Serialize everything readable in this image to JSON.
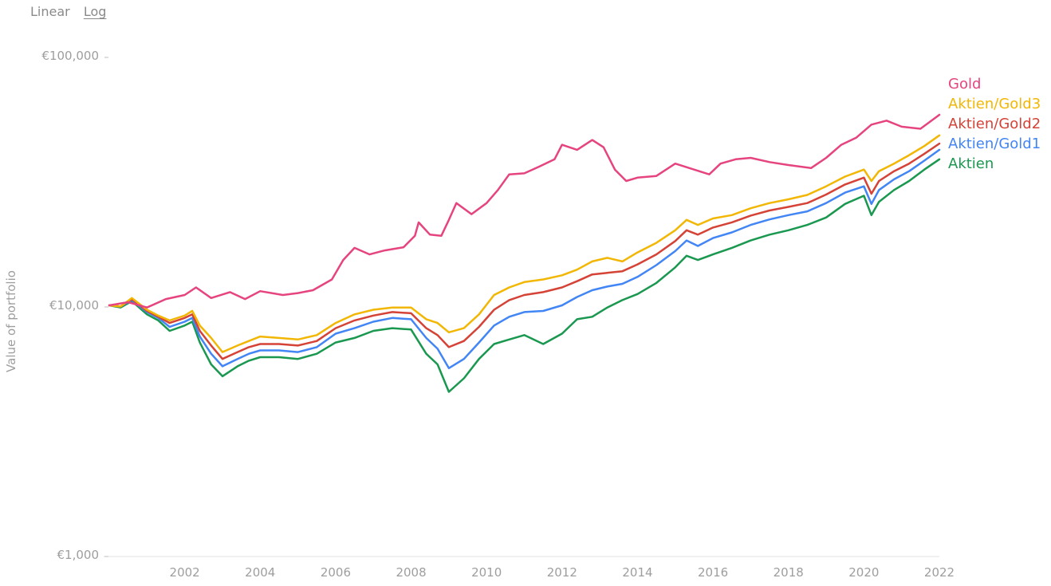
{
  "toggle": {
    "linear": "Linear",
    "log": "Log",
    "selected": "Log"
  },
  "chart_data": {
    "type": "line",
    "ylabel": "Value of portfolio",
    "xlabel": "",
    "yscale": "log",
    "ylim": [
      1000,
      100000
    ],
    "xlim": [
      2000.0,
      2022.0
    ],
    "yticks": [
      {
        "value": 1000,
        "label": "€1,000"
      },
      {
        "value": 10000,
        "label": "€10,000"
      },
      {
        "value": 100000,
        "label": "€100,000"
      }
    ],
    "xticks": [
      "2002",
      "2004",
      "2006",
      "2008",
      "2010",
      "2012",
      "2014",
      "2016",
      "2018",
      "2020",
      "2022"
    ],
    "legend_position": "right",
    "grid": false,
    "series": [
      {
        "name": "Gold",
        "color": "#e6447f",
        "points": [
          [
            2000.0,
            10000
          ],
          [
            2000.5,
            10300
          ],
          [
            2001.0,
            9800
          ],
          [
            2001.5,
            10600
          ],
          [
            2002.0,
            11000
          ],
          [
            2002.3,
            11800
          ],
          [
            2002.7,
            10700
          ],
          [
            2003.2,
            11300
          ],
          [
            2003.6,
            10600
          ],
          [
            2004.0,
            11400
          ],
          [
            2004.6,
            11000
          ],
          [
            2005.0,
            11200
          ],
          [
            2005.4,
            11500
          ],
          [
            2005.9,
            12700
          ],
          [
            2006.2,
            15200
          ],
          [
            2006.5,
            17000
          ],
          [
            2006.9,
            16000
          ],
          [
            2007.3,
            16600
          ],
          [
            2007.8,
            17100
          ],
          [
            2008.1,
            19000
          ],
          [
            2008.2,
            21500
          ],
          [
            2008.5,
            19200
          ],
          [
            2008.8,
            19000
          ],
          [
            2009.0,
            22000
          ],
          [
            2009.2,
            25700
          ],
          [
            2009.6,
            23200
          ],
          [
            2010.0,
            25700
          ],
          [
            2010.3,
            29000
          ],
          [
            2010.6,
            33500
          ],
          [
            2011.0,
            33800
          ],
          [
            2011.4,
            36000
          ],
          [
            2011.8,
            38500
          ],
          [
            2012.0,
            44000
          ],
          [
            2012.4,
            42000
          ],
          [
            2012.8,
            46000
          ],
          [
            2013.1,
            43000
          ],
          [
            2013.4,
            35000
          ],
          [
            2013.7,
            31500
          ],
          [
            2014.0,
            32500
          ],
          [
            2014.5,
            33000
          ],
          [
            2015.0,
            37000
          ],
          [
            2015.5,
            35000
          ],
          [
            2015.9,
            33500
          ],
          [
            2016.2,
            37000
          ],
          [
            2016.6,
            38500
          ],
          [
            2017.0,
            39000
          ],
          [
            2017.5,
            37500
          ],
          [
            2018.0,
            36500
          ],
          [
            2018.6,
            35500
          ],
          [
            2019.0,
            39000
          ],
          [
            2019.4,
            44000
          ],
          [
            2019.8,
            47000
          ],
          [
            2020.2,
            53000
          ],
          [
            2020.6,
            55000
          ],
          [
            2021.0,
            52000
          ],
          [
            2021.5,
            51000
          ],
          [
            2022.0,
            58000
          ]
        ]
      },
      {
        "name": "Aktien/Gold3",
        "color": "#f2b705",
        "points": [
          [
            2000.0,
            10000
          ],
          [
            2000.3,
            9900
          ],
          [
            2000.6,
            10700
          ],
          [
            2001.0,
            9600
          ],
          [
            2001.3,
            9100
          ],
          [
            2001.6,
            8700
          ],
          [
            2002.0,
            9100
          ],
          [
            2002.2,
            9500
          ],
          [
            2002.4,
            8300
          ],
          [
            2002.7,
            7400
          ],
          [
            2003.0,
            6500
          ],
          [
            2003.4,
            6900
          ],
          [
            2003.7,
            7200
          ],
          [
            2004.0,
            7500
          ],
          [
            2004.5,
            7400
          ],
          [
            2005.0,
            7300
          ],
          [
            2005.5,
            7600
          ],
          [
            2006.0,
            8500
          ],
          [
            2006.5,
            9200
          ],
          [
            2007.0,
            9600
          ],
          [
            2007.5,
            9800
          ],
          [
            2008.0,
            9800
          ],
          [
            2008.4,
            8800
          ],
          [
            2008.7,
            8500
          ],
          [
            2009.0,
            7800
          ],
          [
            2009.4,
            8100
          ],
          [
            2009.8,
            9200
          ],
          [
            2010.2,
            11000
          ],
          [
            2010.6,
            11800
          ],
          [
            2011.0,
            12400
          ],
          [
            2011.5,
            12700
          ],
          [
            2012.0,
            13200
          ],
          [
            2012.4,
            13900
          ],
          [
            2012.8,
            15000
          ],
          [
            2013.2,
            15500
          ],
          [
            2013.6,
            15000
          ],
          [
            2014.0,
            16300
          ],
          [
            2014.5,
            17800
          ],
          [
            2015.0,
            20000
          ],
          [
            2015.3,
            22000
          ],
          [
            2015.6,
            21000
          ],
          [
            2016.0,
            22300
          ],
          [
            2016.5,
            23000
          ],
          [
            2017.0,
            24500
          ],
          [
            2017.5,
            25700
          ],
          [
            2018.0,
            26600
          ],
          [
            2018.5,
            27700
          ],
          [
            2019.0,
            30000
          ],
          [
            2019.5,
            32800
          ],
          [
            2020.0,
            35000
          ],
          [
            2020.2,
            31500
          ],
          [
            2020.4,
            34500
          ],
          [
            2020.8,
            37000
          ],
          [
            2021.2,
            40000
          ],
          [
            2021.6,
            43500
          ],
          [
            2022.0,
            48000
          ]
        ]
      },
      {
        "name": "Aktien/Gold2",
        "color": "#d54236",
        "points": [
          [
            2000.0,
            10000
          ],
          [
            2000.3,
            9900
          ],
          [
            2000.6,
            10600
          ],
          [
            2001.0,
            9500
          ],
          [
            2001.3,
            9000
          ],
          [
            2001.6,
            8500
          ],
          [
            2002.0,
            8900
          ],
          [
            2002.2,
            9200
          ],
          [
            2002.4,
            7900
          ],
          [
            2002.7,
            6900
          ],
          [
            2003.0,
            6100
          ],
          [
            2003.4,
            6500
          ],
          [
            2003.7,
            6800
          ],
          [
            2004.0,
            7000
          ],
          [
            2004.5,
            7000
          ],
          [
            2005.0,
            6900
          ],
          [
            2005.5,
            7200
          ],
          [
            2006.0,
            8100
          ],
          [
            2006.5,
            8700
          ],
          [
            2007.0,
            9100
          ],
          [
            2007.5,
            9400
          ],
          [
            2008.0,
            9300
          ],
          [
            2008.4,
            8100
          ],
          [
            2008.7,
            7600
          ],
          [
            2009.0,
            6800
          ],
          [
            2009.4,
            7200
          ],
          [
            2009.8,
            8200
          ],
          [
            2010.2,
            9600
          ],
          [
            2010.6,
            10500
          ],
          [
            2011.0,
            11000
          ],
          [
            2011.5,
            11300
          ],
          [
            2012.0,
            11800
          ],
          [
            2012.4,
            12500
          ],
          [
            2012.8,
            13300
          ],
          [
            2013.2,
            13500
          ],
          [
            2013.6,
            13700
          ],
          [
            2014.0,
            14600
          ],
          [
            2014.5,
            16000
          ],
          [
            2015.0,
            18100
          ],
          [
            2015.3,
            20000
          ],
          [
            2015.6,
            19200
          ],
          [
            2016.0,
            20500
          ],
          [
            2016.5,
            21500
          ],
          [
            2017.0,
            22900
          ],
          [
            2017.5,
            24000
          ],
          [
            2018.0,
            24800
          ],
          [
            2018.5,
            25700
          ],
          [
            2019.0,
            27800
          ],
          [
            2019.5,
            30500
          ],
          [
            2020.0,
            32500
          ],
          [
            2020.2,
            28000
          ],
          [
            2020.4,
            31500
          ],
          [
            2020.8,
            34500
          ],
          [
            2021.2,
            37000
          ],
          [
            2021.6,
            40500
          ],
          [
            2022.0,
            44500
          ]
        ]
      },
      {
        "name": "Aktien/Gold1",
        "color": "#4285f4",
        "points": [
          [
            2000.0,
            10000
          ],
          [
            2000.3,
            9900
          ],
          [
            2000.6,
            10500
          ],
          [
            2001.0,
            9400
          ],
          [
            2001.3,
            8900
          ],
          [
            2001.6,
            8200
          ],
          [
            2002.0,
            8600
          ],
          [
            2002.2,
            8900
          ],
          [
            2002.4,
            7500
          ],
          [
            2002.7,
            6400
          ],
          [
            2003.0,
            5700
          ],
          [
            2003.4,
            6100
          ],
          [
            2003.7,
            6400
          ],
          [
            2004.0,
            6600
          ],
          [
            2004.5,
            6600
          ],
          [
            2005.0,
            6500
          ],
          [
            2005.5,
            6800
          ],
          [
            2006.0,
            7700
          ],
          [
            2006.5,
            8100
          ],
          [
            2007.0,
            8600
          ],
          [
            2007.5,
            8900
          ],
          [
            2008.0,
            8800
          ],
          [
            2008.4,
            7400
          ],
          [
            2008.7,
            6700
          ],
          [
            2009.0,
            5600
          ],
          [
            2009.4,
            6100
          ],
          [
            2009.8,
            7100
          ],
          [
            2010.2,
            8300
          ],
          [
            2010.6,
            9000
          ],
          [
            2011.0,
            9400
          ],
          [
            2011.5,
            9500
          ],
          [
            2012.0,
            10000
          ],
          [
            2012.4,
            10800
          ],
          [
            2012.8,
            11500
          ],
          [
            2013.2,
            11900
          ],
          [
            2013.6,
            12200
          ],
          [
            2014.0,
            13000
          ],
          [
            2014.5,
            14500
          ],
          [
            2015.0,
            16500
          ],
          [
            2015.3,
            18200
          ],
          [
            2015.6,
            17300
          ],
          [
            2016.0,
            18600
          ],
          [
            2016.5,
            19600
          ],
          [
            2017.0,
            21000
          ],
          [
            2017.5,
            22100
          ],
          [
            2018.0,
            23000
          ],
          [
            2018.5,
            23800
          ],
          [
            2019.0,
            25700
          ],
          [
            2019.5,
            28300
          ],
          [
            2020.0,
            30000
          ],
          [
            2020.2,
            25500
          ],
          [
            2020.4,
            29000
          ],
          [
            2020.8,
            32000
          ],
          [
            2021.2,
            34500
          ],
          [
            2021.6,
            38000
          ],
          [
            2022.0,
            42000
          ]
        ]
      },
      {
        "name": "Aktien",
        "color": "#1a9850",
        "points": [
          [
            2000.0,
            10000
          ],
          [
            2000.3,
            9800
          ],
          [
            2000.6,
            10400
          ],
          [
            2001.0,
            9200
          ],
          [
            2001.3,
            8700
          ],
          [
            2001.6,
            7900
          ],
          [
            2002.0,
            8300
          ],
          [
            2002.2,
            8600
          ],
          [
            2002.4,
            7100
          ],
          [
            2002.7,
            5800
          ],
          [
            2003.0,
            5200
          ],
          [
            2003.4,
            5700
          ],
          [
            2003.7,
            6000
          ],
          [
            2004.0,
            6200
          ],
          [
            2004.5,
            6200
          ],
          [
            2005.0,
            6100
          ],
          [
            2005.5,
            6400
          ],
          [
            2006.0,
            7100
          ],
          [
            2006.5,
            7400
          ],
          [
            2007.0,
            7900
          ],
          [
            2007.5,
            8100
          ],
          [
            2008.0,
            8000
          ],
          [
            2008.4,
            6400
          ],
          [
            2008.7,
            5800
          ],
          [
            2009.0,
            4500
          ],
          [
            2009.4,
            5100
          ],
          [
            2009.8,
            6100
          ],
          [
            2010.2,
            7000
          ],
          [
            2010.6,
            7300
          ],
          [
            2011.0,
            7600
          ],
          [
            2011.5,
            7000
          ],
          [
            2012.0,
            7700
          ],
          [
            2012.4,
            8800
          ],
          [
            2012.8,
            9000
          ],
          [
            2013.2,
            9800
          ],
          [
            2013.6,
            10500
          ],
          [
            2014.0,
            11100
          ],
          [
            2014.5,
            12300
          ],
          [
            2015.0,
            14200
          ],
          [
            2015.3,
            15800
          ],
          [
            2015.6,
            15200
          ],
          [
            2016.0,
            16000
          ],
          [
            2016.5,
            17000
          ],
          [
            2017.0,
            18200
          ],
          [
            2017.5,
            19200
          ],
          [
            2018.0,
            20000
          ],
          [
            2018.5,
            21000
          ],
          [
            2019.0,
            22500
          ],
          [
            2019.5,
            25500
          ],
          [
            2020.0,
            27500
          ],
          [
            2020.2,
            23000
          ],
          [
            2020.4,
            26000
          ],
          [
            2020.8,
            29000
          ],
          [
            2021.2,
            31500
          ],
          [
            2021.6,
            35000
          ],
          [
            2022.0,
            38500
          ]
        ]
      }
    ]
  }
}
